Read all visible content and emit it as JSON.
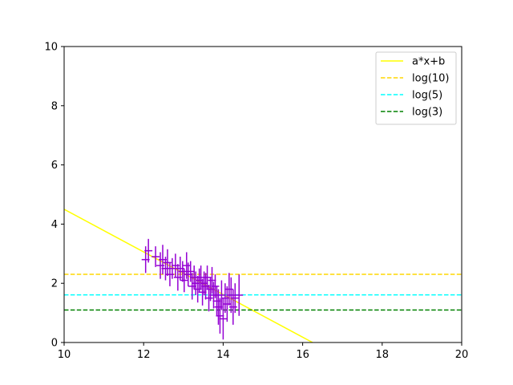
{
  "chart_data": {
    "type": "scatter",
    "xlim": [
      10,
      20
    ],
    "ylim": [
      0,
      10
    ],
    "x_ticks": [
      "10",
      "12",
      "14",
      "16",
      "18",
      "20"
    ],
    "y_ticks": [
      "0",
      "2",
      "4",
      "6",
      "8",
      "10"
    ],
    "grid": false,
    "legend_position": "top-right",
    "series": [
      {
        "name": "a*x+b",
        "kind": "line",
        "style": "solid",
        "color": "#ffff00",
        "x": [
          10,
          16.25
        ],
        "y": [
          4.5,
          0
        ]
      },
      {
        "name": "log(10)",
        "kind": "hline",
        "style": "dashed",
        "color": "#ffd700",
        "y": 2.303
      },
      {
        "name": "log(5)",
        "kind": "hline",
        "style": "dashed",
        "color": "#00ffff",
        "y": 1.609
      },
      {
        "name": "log(3)",
        "kind": "hline",
        "style": "dashed",
        "color": "#008000",
        "y": 1.099
      }
    ],
    "errorbar_data": {
      "color": "#9400d3",
      "x": [
        12.05,
        12.12,
        12.3,
        12.42,
        12.48,
        12.55,
        12.6,
        12.66,
        12.72,
        12.8,
        12.86,
        12.92,
        12.98,
        13.02,
        13.08,
        13.12,
        13.18,
        13.22,
        13.27,
        13.31,
        13.36,
        13.4,
        13.44,
        13.48,
        13.52,
        13.56,
        13.6,
        13.64,
        13.68,
        13.72,
        13.76,
        13.8,
        13.84,
        13.88,
        13.92,
        13.96,
        14.0,
        14.05,
        14.1,
        14.15,
        14.2,
        14.25,
        14.3,
        14.4
      ],
      "y": [
        2.8,
        3.1,
        2.9,
        2.6,
        2.8,
        2.5,
        2.7,
        2.3,
        2.5,
        2.6,
        2.2,
        2.5,
        2.4,
        2.1,
        2.6,
        2.3,
        2.4,
        1.9,
        2.2,
        2.0,
        1.8,
        2.1,
        2.2,
        1.7,
        2.0,
        1.9,
        2.2,
        1.5,
        1.8,
        2.1,
        1.6,
        1.9,
        1.4,
        1.2,
        0.9,
        1.6,
        0.8,
        1.5,
        1.3,
        1.8,
        1.6,
        1.2,
        1.5,
        1.6
      ],
      "yerr": [
        0.45,
        0.4,
        0.35,
        0.45,
        0.5,
        0.4,
        0.45,
        0.4,
        0.35,
        0.4,
        0.45,
        0.4,
        0.35,
        0.4,
        0.45,
        0.4,
        0.35,
        0.45,
        0.4,
        0.4,
        0.45,
        0.4,
        0.4,
        0.45,
        0.4,
        0.45,
        0.4,
        0.45,
        0.4,
        0.45,
        0.45,
        0.4,
        0.5,
        0.6,
        0.6,
        0.5,
        0.7,
        0.5,
        0.6,
        0.55,
        0.6,
        0.6,
        0.5,
        0.7
      ],
      "xerr": 0.1
    }
  }
}
